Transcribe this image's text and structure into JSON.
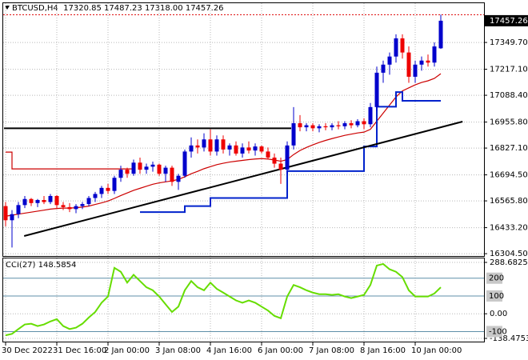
{
  "chart_data": [
    {
      "type": "candlestick",
      "title": "BTCUSD,H4  17320.85 17487.23 17318.00 17457.26",
      "categories": [
        "30 Dec 2022",
        null,
        null,
        null,
        null,
        null,
        null,
        null,
        "31 Dec 16:00",
        null,
        null,
        null,
        null,
        null,
        null,
        null,
        "2 Jan 00:00",
        null,
        null,
        null,
        null,
        null,
        null,
        null,
        "3 Jan 08:00",
        null,
        null,
        null,
        null,
        null,
        null,
        null,
        "4 Jan 16:00",
        null,
        null,
        null,
        null,
        null,
        null,
        null,
        "6 Jan 00:00",
        null,
        null,
        null,
        null,
        null,
        null,
        null,
        "7 Jan 08:00",
        null,
        null,
        null,
        null,
        null,
        null,
        null,
        "8 Jan 16:00",
        null,
        null,
        null,
        null,
        null,
        null,
        null,
        "10 Jan 00:00",
        null,
        null,
        null,
        null
      ],
      "ohlc": [
        [
          16540,
          16560,
          16440,
          16470
        ],
        [
          16470,
          16520,
          16335,
          16500
        ],
        [
          16500,
          16560,
          16480,
          16545
        ],
        [
          16545,
          16590,
          16530,
          16575
        ],
        [
          16575,
          16580,
          16540,
          16555
        ],
        [
          16555,
          16575,
          16535,
          16570
        ],
        [
          16570,
          16590,
          16550,
          16560
        ],
        [
          16560,
          16600,
          16550,
          16590
        ],
        [
          16590,
          16595,
          16530,
          16545
        ],
        [
          16545,
          16560,
          16520,
          16535
        ],
        [
          16535,
          16555,
          16510,
          16525
        ],
        [
          16525,
          16550,
          16505,
          16540
        ],
        [
          16540,
          16560,
          16525,
          16550
        ],
        [
          16550,
          16590,
          16540,
          16580
        ],
        [
          16580,
          16610,
          16560,
          16600
        ],
        [
          16600,
          16640,
          16580,
          16630
        ],
        [
          16630,
          16650,
          16600,
          16615
        ],
        [
          16615,
          16690,
          16600,
          16680
        ],
        [
          16680,
          16740,
          16660,
          16720
        ],
        [
          16720,
          16730,
          16680,
          16700
        ],
        [
          16700,
          16770,
          16690,
          16755
        ],
        [
          16755,
          16780,
          16700,
          16720
        ],
        [
          16720,
          16750,
          16700,
          16735
        ],
        [
          16735,
          16760,
          16710,
          16745
        ],
        [
          16745,
          16750,
          16690,
          16700
        ],
        [
          16700,
          16740,
          16660,
          16730
        ],
        [
          16730,
          16740,
          16640,
          16660
        ],
        [
          16660,
          16700,
          16620,
          16690
        ],
        [
          16690,
          16820,
          16680,
          16810
        ],
        [
          16810,
          16880,
          16780,
          16840
        ],
        [
          16840,
          16870,
          16800,
          16830
        ],
        [
          16830,
          16900,
          16810,
          16870
        ],
        [
          16870,
          16920,
          16790,
          16810
        ],
        [
          16810,
          16890,
          16790,
          16870
        ],
        [
          16870,
          16890,
          16800,
          16820
        ],
        [
          16820,
          16850,
          16790,
          16840
        ],
        [
          16840,
          16860,
          16790,
          16800
        ],
        [
          16800,
          16850,
          16780,
          16830
        ],
        [
          16830,
          16860,
          16800,
          16815
        ],
        [
          16815,
          16850,
          16790,
          16835
        ],
        [
          16835,
          16840,
          16800,
          16810
        ],
        [
          16810,
          16830,
          16770,
          16780
        ],
        [
          16780,
          16800,
          16730,
          16750
        ],
        [
          16750,
          16780,
          16650,
          16720
        ],
        [
          16720,
          16860,
          16700,
          16840
        ],
        [
          16840,
          17030,
          16820,
          16950
        ],
        [
          16950,
          16990,
          16910,
          16930
        ],
        [
          16930,
          16950,
          16910,
          16940
        ],
        [
          16940,
          16950,
          16910,
          16925
        ],
        [
          16925,
          16945,
          16905,
          16935
        ],
        [
          16935,
          16950,
          16915,
          16930
        ],
        [
          16930,
          16950,
          16915,
          16940
        ],
        [
          16940,
          16960,
          16920,
          16935
        ],
        [
          16935,
          16960,
          16920,
          16950
        ],
        [
          16950,
          16965,
          16925,
          16940
        ],
        [
          16940,
          16970,
          16930,
          16960
        ],
        [
          16960,
          16975,
          16920,
          16945
        ],
        [
          16945,
          17050,
          16930,
          17030
        ],
        [
          17030,
          17230,
          17010,
          17200
        ],
        [
          17200,
          17260,
          17150,
          17240
        ],
        [
          17240,
          17300,
          17190,
          17280
        ],
        [
          17280,
          17390,
          17250,
          17370
        ],
        [
          17370,
          17390,
          17270,
          17300
        ],
        [
          17300,
          17330,
          17150,
          17180
        ],
        [
          17180,
          17260,
          17150,
          17240
        ],
        [
          17240,
          17280,
          17210,
          17260
        ],
        [
          17260,
          17290,
          17230,
          17250
        ],
        [
          17250,
          17350,
          17230,
          17330
        ],
        [
          17320.85,
          17487.23,
          17318.0,
          17457.26
        ]
      ],
      "up_color": "#0000cc",
      "down_color": "#ee0000",
      "lines": [
        {
          "color": "#cc0000",
          "style": "smooth",
          "values": [
            16490,
            16495,
            16500,
            16505,
            16510,
            16515,
            16520,
            16525,
            16528,
            16530,
            16530,
            16532,
            16535,
            16540,
            16548,
            16556,
            16565,
            16578,
            16592,
            16605,
            16618,
            16628,
            16638,
            16648,
            16655,
            16660,
            16665,
            16672,
            16685,
            16700,
            16712,
            16725,
            16735,
            16745,
            16752,
            16758,
            16762,
            16766,
            16770,
            16773,
            16775,
            16773,
            16768,
            16762,
            16770,
            16795,
            16815,
            16830,
            16843,
            16855,
            16865,
            16874,
            16882,
            16890,
            16896,
            16902,
            16906,
            16920,
            16960,
            17000,
            17040,
            17080,
            17110,
            17125,
            17140,
            17152,
            17160,
            17172,
            17195
          ]
        },
        {
          "color": "#cc0000",
          "style": "step",
          "values": [
            16807,
            16724,
            16724,
            16724,
            16724,
            16724,
            16724,
            16724,
            16724,
            16724,
            16724,
            16724,
            16724,
            16724,
            16724,
            16724,
            16724,
            16724,
            16724,
            16724,
            16724,
            null,
            null,
            null,
            null,
            null,
            null,
            null,
            null,
            null,
            null,
            null,
            null,
            null,
            null,
            null,
            null,
            null,
            null,
            null,
            null,
            null,
            null,
            null,
            null,
            null,
            null,
            null,
            null,
            null,
            null,
            null,
            null,
            null,
            null,
            null,
            null,
            null,
            null,
            null,
            null,
            null,
            null,
            null,
            null,
            null,
            null,
            null,
            null
          ]
        },
        {
          "color": "#0022cc",
          "style": "step",
          "values": [
            null,
            null,
            null,
            null,
            null,
            null,
            null,
            null,
            null,
            null,
            null,
            null,
            null,
            null,
            null,
            null,
            null,
            null,
            null,
            null,
            null,
            16510,
            16510,
            16510,
            16510,
            16510,
            16510,
            16510,
            16540,
            16540,
            16540,
            16540,
            16580,
            16580,
            16580,
            16580,
            16580,
            16580,
            16580,
            16580,
            16580,
            16580,
            16580,
            16580,
            16713,
            16713,
            16713,
            16713,
            16713,
            16713,
            16713,
            16713,
            16713,
            16713,
            16713,
            16713,
            16835,
            16835,
            17032,
            17032,
            17032,
            17104,
            17061,
            17061,
            17061,
            17061,
            17061,
            17061,
            17061
          ]
        }
      ],
      "hline": 16925,
      "trendline": {
        "x": [
          2.9,
          71.4
        ],
        "values": [
          16392,
          16958
        ]
      },
      "ylim": [
        16293,
        17540
      ],
      "yticks": [
        {
          "value": 17349.7,
          "label": "17349.70"
        },
        {
          "value": 17217.1,
          "label": "17217.10"
        },
        {
          "value": 17088.4,
          "label": "17088.40"
        },
        {
          "value": 16955.8,
          "label": "16955.80"
        },
        {
          "value": 16827.1,
          "label": "16827.10"
        },
        {
          "value": 16694.5,
          "label": "16694.50"
        },
        {
          "value": 16565.8,
          "label": "16565.80"
        },
        {
          "value": 16433.2,
          "label": "16433.20"
        },
        {
          "value": 16304.5,
          "label": "16304.50"
        }
      ],
      "grid": true
    },
    {
      "type": "line",
      "title": "CCI(27) 148.5854",
      "color": "#66dd00",
      "values": [
        -121,
        -113,
        -86,
        -60,
        -56,
        -69,
        -60,
        -43,
        -30,
        -69,
        -86,
        -78,
        -56,
        -21,
        10,
        62,
        97,
        258,
        236,
        175,
        219,
        184,
        149,
        132,
        97,
        53,
        10,
        40,
        132,
        184,
        149,
        132,
        175,
        140,
        119,
        97,
        75,
        62,
        75,
        62,
        40,
        18,
        -12,
        -25,
        97,
        162,
        149,
        132,
        119,
        110,
        110,
        106,
        110,
        97,
        88,
        97,
        106,
        162,
        271,
        280,
        250,
        236,
        206,
        132,
        97,
        97,
        97,
        114,
        148.5854
      ],
      "ylim": [
        -138.4753,
        288.6825
      ],
      "yticks": [
        288.6825,
        {
          "value": 0,
          "label": "0.00"
        },
        -138.4753
      ],
      "levels": [
        200,
        100,
        -100
      ],
      "grid": true
    }
  ]
}
